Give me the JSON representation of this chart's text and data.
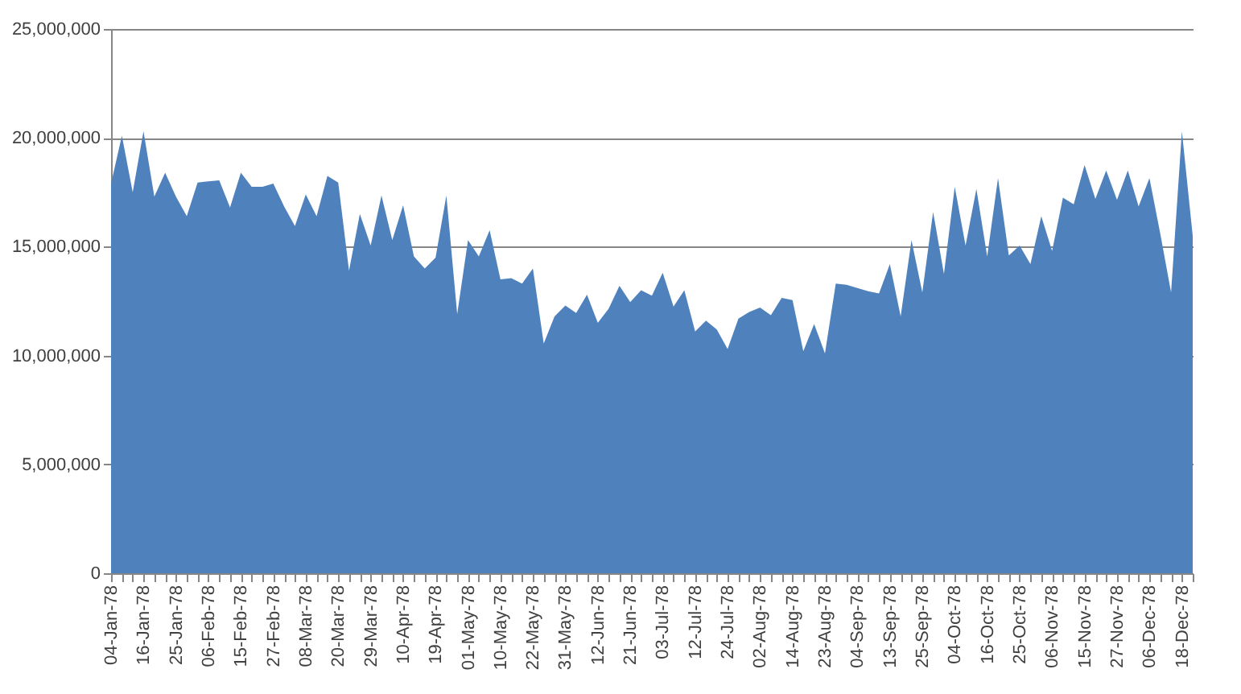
{
  "chart_data": {
    "type": "area",
    "categories": [
      "04-Jan-78",
      null,
      null,
      "16-Jan-78",
      null,
      null,
      "25-Jan-78",
      null,
      null,
      "06-Feb-78",
      null,
      null,
      "15-Feb-78",
      null,
      null,
      "27-Feb-78",
      null,
      null,
      "08-Mar-78",
      null,
      null,
      "20-Mar-78",
      null,
      null,
      "29-Mar-78",
      null,
      null,
      "10-Apr-78",
      null,
      null,
      "19-Apr-78",
      null,
      null,
      "01-May-78",
      null,
      null,
      "10-May-78",
      null,
      null,
      "22-May-78",
      null,
      null,
      "31-May-78",
      null,
      null,
      "12-Jun-78",
      null,
      null,
      "21-Jun-78",
      null,
      null,
      "03-Jul-78",
      null,
      null,
      "12-Jul-78",
      null,
      null,
      "24-Jul-78",
      null,
      null,
      "02-Aug-78",
      null,
      null,
      "14-Aug-78",
      null,
      null,
      "23-Aug-78",
      null,
      null,
      "04-Sep-78",
      null,
      null,
      "13-Sep-78",
      null,
      null,
      "25-Sep-78",
      null,
      null,
      "04-Oct-78",
      null,
      null,
      "16-Oct-78",
      null,
      null,
      "25-Oct-78",
      null,
      null,
      "06-Nov-78",
      null,
      null,
      "15-Nov-78",
      null,
      null,
      "27-Nov-78",
      null,
      null,
      "06-Dec-78",
      null,
      null,
      "18-Dec-78",
      null
    ],
    "series": [
      {
        "color": "#4f81bd",
        "values": [
          17900000,
          20100000,
          17500000,
          20300000,
          17300000,
          18400000,
          17300000,
          16400000,
          17950000,
          18000000,
          18050000,
          16800000,
          18400000,
          17750000,
          17750000,
          17900000,
          16850000,
          15950000,
          17400000,
          16400000,
          18250000,
          17950000,
          13900000,
          16500000,
          15050000,
          17350000,
          15300000,
          16900000,
          14550000,
          14000000,
          14500000,
          17350000,
          11900000,
          15300000,
          14550000,
          15750000,
          13500000,
          13550000,
          13300000,
          14000000,
          10550000,
          11800000,
          12300000,
          11950000,
          12800000,
          11500000,
          12150000,
          13200000,
          12450000,
          13000000,
          12750000,
          13800000,
          12250000,
          13000000,
          11100000,
          11600000,
          11200000,
          10300000,
          11700000,
          12000000,
          12200000,
          11850000,
          12650000,
          12550000,
          10200000,
          11450000,
          10100000,
          13300000,
          13250000,
          13100000,
          12950000,
          12850000,
          14200000,
          11800000,
          15300000,
          12900000,
          16600000,
          13750000,
          17750000,
          15050000,
          17650000,
          14550000,
          18150000,
          14600000,
          15050000,
          14200000,
          16400000,
          14800000,
          17250000,
          16950000,
          18750000,
          17200000,
          18500000,
          17150000,
          18500000,
          16850000,
          18150000,
          15600000,
          12900000,
          20300000,
          15500000
        ]
      }
    ],
    "ylim": [
      0,
      25000000
    ],
    "yticks": [
      0,
      {
        "value": 5000000,
        "label": "5,000,000"
      },
      {
        "value": 10000000,
        "label": "10,000,000"
      },
      {
        "value": 15000000,
        "label": "15,000,000"
      },
      {
        "value": 20000000,
        "label": "20,000,000"
      },
      {
        "value": 25000000,
        "label": "25,000,000"
      }
    ],
    "grid": "y"
  }
}
